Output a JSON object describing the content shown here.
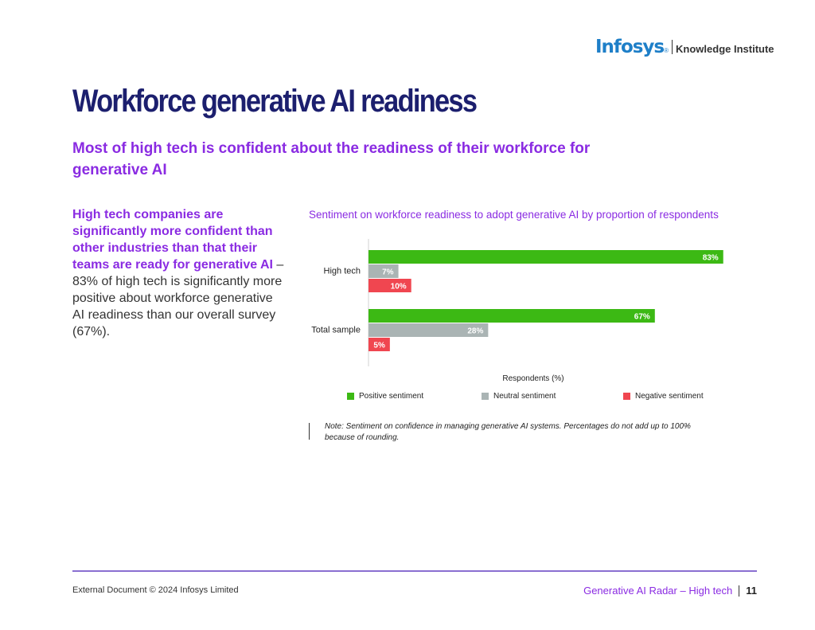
{
  "brand": {
    "name": "Infosys",
    "reg": "®",
    "sub": "Knowledge Institute"
  },
  "page_title": "Workforce generative AI readiness",
  "subtitle": "Most of high tech is confident about the readiness of their workforce for generative AI",
  "side_text": {
    "emph": "High tech companies are significantly more confident than other industries than that their teams are ready for generative AI",
    "rest": " – 83% of high tech is significantly more positive about workforce generative AI readiness than our overall survey (67%)."
  },
  "chart_data": {
    "type": "bar",
    "orientation": "horizontal",
    "title": "Sentiment on workforce readiness to adopt generative AI by proportion of respondents",
    "categories": [
      "High tech",
      "Total sample"
    ],
    "series": [
      {
        "name": "Positive sentiment",
        "color": "#3cb914",
        "values": [
          83,
          67
        ],
        "labels": [
          "83%",
          "67%"
        ]
      },
      {
        "name": "Neutral sentiment",
        "color": "#aab4b4",
        "values": [
          7,
          28
        ],
        "labels": [
          "7%",
          "28%"
        ]
      },
      {
        "name": "Negative  sentiment",
        "color": "#f04650",
        "values": [
          10,
          5
        ],
        "labels": [
          "10%",
          "5%"
        ]
      }
    ],
    "xlabel": "Respondents (%)",
    "xlim": [
      0,
      100
    ],
    "grid": false,
    "legend": "bottom"
  },
  "note": "Note: Sentiment on confidence in managing generative AI systems. Percentages do not add up to 100% because of rounding.",
  "footer": {
    "left": "External Document © 2024 Infosys Limited",
    "right": "Generative AI Radar – High tech",
    "page": "11"
  }
}
